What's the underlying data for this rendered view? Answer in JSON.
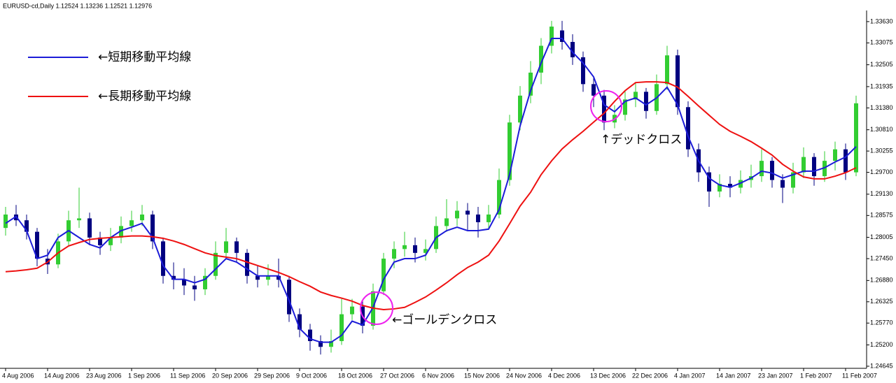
{
  "chart_data": {
    "type": "candlestick",
    "title": "EURUSD-cd,Daily  1.12524 1.13236 1.12521 1.12976",
    "categories": [
      "4 Aug 2006",
      null,
      null,
      null,
      "14 Aug 2006",
      null,
      null,
      null,
      "23 Aug 2006",
      null,
      null,
      null,
      "1 Sep 2006",
      null,
      null,
      null,
      "11 Sep 2006",
      null,
      null,
      null,
      "20 Sep 2006",
      null,
      null,
      null,
      "29 Sep 2006",
      null,
      null,
      null,
      "9 Oct 2006",
      null,
      null,
      null,
      "18 Oct 2006",
      null,
      null,
      null,
      "27 Oct 2006",
      null,
      null,
      null,
      "6 Nov 2006",
      null,
      null,
      null,
      "15 Nov 2006",
      null,
      null,
      null,
      "24 Nov 2006",
      null,
      null,
      null,
      "4 Dec 2006",
      null,
      null,
      null,
      "13 Dec 2006",
      null,
      null,
      null,
      "22 Dec 2006",
      null,
      null,
      null,
      "4 Jan 2007",
      null,
      null,
      null,
      "14 Jan 2007",
      null,
      null,
      null,
      "23 Jan 2007",
      null,
      null,
      null,
      "1 Feb 2007",
      null,
      null,
      null,
      "11 Feb 2007",
      null
    ],
    "open": [
      1.2825,
      1.286,
      1.2845,
      1.2815,
      1.2745,
      1.273,
      1.279,
      1.2845,
      1.285,
      1.28,
      1.278,
      1.28,
      1.283,
      1.2845,
      1.286,
      1.279,
      1.27,
      1.269,
      1.2675,
      1.2665,
      1.27,
      1.276,
      1.279,
      1.276,
      1.27,
      1.269,
      1.27,
      1.269,
      1.26,
      1.256,
      1.253,
      1.2515,
      1.253,
      1.26,
      1.262,
      1.257,
      1.266,
      1.2745,
      1.277,
      1.278,
      1.276,
      1.277,
      1.283,
      1.285,
      1.287,
      1.286,
      1.284,
      1.286,
      1.295,
      1.31,
      1.317,
      1.323,
      1.33,
      1.334,
      1.331,
      1.327,
      1.32,
      1.317,
      1.31,
      1.312,
      1.316,
      1.318,
      1.313,
      1.32,
      1.3275,
      1.314,
      1.303,
      1.297,
      1.292,
      1.294,
      1.293,
      1.295,
      1.296,
      1.3,
      1.295,
      1.293,
      1.297,
      1.301,
      1.296,
      1.3,
      1.303,
      1.297
    ],
    "high": [
      1.288,
      1.2885,
      1.286,
      1.2825,
      1.277,
      1.281,
      1.287,
      1.293,
      1.2865,
      1.2815,
      1.2825,
      1.2855,
      1.287,
      1.2885,
      1.287,
      1.28,
      1.2735,
      1.272,
      1.27,
      1.272,
      1.279,
      1.2825,
      1.28,
      1.277,
      1.2725,
      1.273,
      1.2745,
      1.27,
      1.2615,
      1.2575,
      1.2545,
      1.256,
      1.264,
      1.264,
      1.2635,
      1.268,
      1.276,
      1.279,
      1.2815,
      1.28,
      1.2795,
      1.2855,
      1.29,
      1.2895,
      1.289,
      1.288,
      1.2885,
      1.298,
      1.312,
      1.3195,
      1.326,
      1.332,
      1.3365,
      1.3365,
      1.333,
      1.3285,
      1.322,
      1.3185,
      1.3145,
      1.3185,
      1.3205,
      1.319,
      1.3225,
      1.33,
      1.329,
      1.3155,
      1.3045,
      1.2985,
      1.2965,
      1.296,
      1.2975,
      1.299,
      1.303,
      1.301,
      1.2965,
      1.2995,
      1.3035,
      1.302,
      1.3025,
      1.305,
      1.3045,
      1.317
    ],
    "low": [
      1.2805,
      1.283,
      1.2795,
      1.2725,
      1.2705,
      1.272,
      1.278,
      1.2825,
      1.278,
      1.2755,
      1.2765,
      1.2785,
      1.2815,
      1.283,
      1.277,
      1.268,
      1.2665,
      1.265,
      1.2635,
      1.265,
      1.269,
      1.2745,
      1.2735,
      1.268,
      1.267,
      1.2675,
      1.267,
      1.258,
      1.254,
      1.2505,
      1.2495,
      1.25,
      1.252,
      1.2585,
      1.255,
      1.256,
      1.265,
      1.272,
      1.275,
      1.2735,
      1.274,
      1.276,
      1.2815,
      1.283,
      1.282,
      1.28,
      1.282,
      1.285,
      1.2935,
      1.308,
      1.315,
      1.32,
      1.328,
      1.329,
      1.325,
      1.318,
      1.314,
      1.308,
      1.3085,
      1.3105,
      1.314,
      1.311,
      1.312,
      1.3185,
      1.312,
      1.301,
      1.2945,
      1.288,
      1.2905,
      1.2905,
      1.2915,
      1.293,
      1.2945,
      1.293,
      1.289,
      1.2915,
      1.2955,
      1.2935,
      1.2945,
      1.2975,
      1.295,
      1.296
    ],
    "close": [
      1.286,
      1.2845,
      1.2815,
      1.2745,
      1.273,
      1.279,
      1.2845,
      1.285,
      1.28,
      1.278,
      1.28,
      1.283,
      1.2845,
      1.286,
      1.279,
      1.27,
      1.269,
      1.2675,
      1.2665,
      1.27,
      1.276,
      1.279,
      1.276,
      1.27,
      1.269,
      1.27,
      1.269,
      1.26,
      1.256,
      1.253,
      1.2515,
      1.253,
      1.26,
      1.262,
      1.257,
      1.266,
      1.2745,
      1.277,
      1.278,
      1.276,
      1.277,
      1.283,
      1.285,
      1.287,
      1.286,
      1.284,
      1.286,
      1.295,
      1.31,
      1.317,
      1.323,
      1.33,
      1.335,
      1.331,
      1.327,
      1.32,
      1.317,
      1.31,
      1.312,
      1.316,
      1.318,
      1.313,
      1.32,
      1.3275,
      1.314,
      1.303,
      1.297,
      1.292,
      1.294,
      1.293,
      1.295,
      1.296,
      1.3,
      1.295,
      1.293,
      1.297,
      1.301,
      1.296,
      1.3,
      1.303,
      1.297,
      1.315
    ],
    "up_color": "#32cd32",
    "down_color": "#000080",
    "series": [
      {
        "name": "←短期移動平均線",
        "color": "#1c1cd8",
        "values": [
          1.2837,
          1.2855,
          1.2818,
          1.2745,
          1.2754,
          1.28,
          1.2818,
          1.28,
          1.2782,
          1.2773,
          1.28,
          1.2818,
          1.2827,
          1.2837,
          1.28,
          1.2727,
          1.2691,
          1.2691,
          1.2682,
          1.2691,
          1.2718,
          1.2745,
          1.2736,
          1.2718,
          1.27,
          1.27,
          1.27,
          1.2636,
          1.2563,
          1.2536,
          1.2527,
          1.2527,
          1.2545,
          1.2582,
          1.2572,
          1.2618,
          1.2691,
          1.2736,
          1.2745,
          1.2745,
          1.2754,
          1.28,
          1.2818,
          1.2827,
          1.2818,
          1.2818,
          1.2822,
          1.2873,
          1.2964,
          1.3091,
          1.3183,
          1.3255,
          1.3319,
          1.3319,
          1.3283,
          1.3255,
          1.3219,
          1.3146,
          1.3128,
          1.3155,
          1.3164,
          1.3146,
          1.3164,
          1.3192,
          1.3146,
          1.3064,
          1.3,
          1.2955,
          1.2937,
          1.2931,
          1.2942,
          1.2955,
          1.2973,
          1.2968,
          1.2955,
          1.2964,
          1.2973,
          1.2973,
          1.2982,
          1.2997,
          1.301,
          1.3037
        ]
      },
      {
        "name": "←長期移動平均線",
        "color": "#ee1111",
        "values": [
          1.2711,
          1.2713,
          1.2716,
          1.272,
          1.2736,
          1.276,
          1.2778,
          1.2787,
          1.2795,
          1.2798,
          1.28,
          1.2802,
          1.2804,
          1.2804,
          1.2802,
          1.2798,
          1.2791,
          1.2782,
          1.2771,
          1.276,
          1.2753,
          1.2749,
          1.2745,
          1.2736,
          1.2727,
          1.2718,
          1.2709,
          1.2698,
          1.2685,
          1.2673,
          1.2658,
          1.2649,
          1.2642,
          1.2634,
          1.2623,
          1.2616,
          1.2612,
          1.2614,
          1.2618,
          1.2631,
          1.2645,
          1.2663,
          1.2682,
          1.2703,
          1.2722,
          1.2736,
          1.2754,
          1.2791,
          1.2836,
          1.2882,
          1.2918,
          1.2964,
          1.3,
          1.3031,
          1.3055,
          1.3077,
          1.3101,
          1.3124,
          1.3155,
          1.3183,
          1.3204,
          1.3206,
          1.3206,
          1.3204,
          1.3192,
          1.3168,
          1.3143,
          1.3119,
          1.3095,
          1.3077,
          1.3064,
          1.305,
          1.3033,
          1.3015,
          1.2991,
          1.2973,
          1.2958,
          1.2953,
          1.2953,
          1.296,
          1.2969,
          1.2982
        ]
      }
    ],
    "ylim": [
      1.2459,
      1.3392
    ],
    "yticks": [
      {
        "value": 1.3363,
        "label": "1.33630"
      },
      1.33075,
      1.32505,
      1.31935,
      {
        "value": 1.3138,
        "label": "1.31380"
      },
      {
        "value": 1.3081,
        "label": "1.30810"
      },
      1.30255,
      {
        "value": 1.297,
        "label": "1.29700"
      },
      {
        "value": 1.2913,
        "label": "1.29130"
      },
      1.28575,
      1.28005,
      {
        "value": 1.2745,
        "label": "1.27450"
      },
      {
        "value": 1.2688,
        "label": "1.26880"
      },
      1.26325,
      {
        "value": 1.2577,
        "label": "1.25770"
      },
      {
        "value": 1.252,
        "label": "1.25200"
      },
      1.24645
    ],
    "annotations": [
      "←ゴールデンクロス",
      "↑デッドクロス"
    ],
    "highlight_color": "#ee22ee"
  }
}
